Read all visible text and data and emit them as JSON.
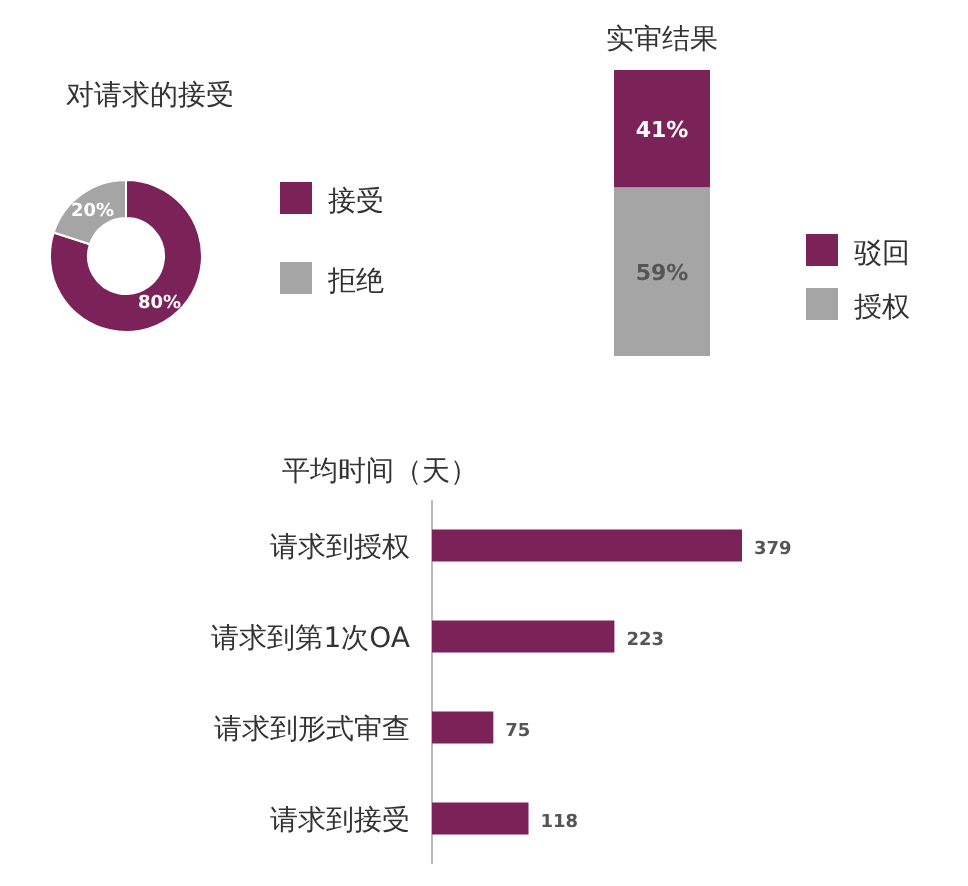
{
  "chart_data": [
    {
      "type": "donut",
      "title": "对请求的接受",
      "categories": [
        "接受",
        "拒绝"
      ],
      "values": [
        80,
        20
      ],
      "colors": [
        "#7b2359",
        "#a5a5a5"
      ],
      "value_labels": [
        "80%",
        "20%"
      ],
      "legend": "right"
    },
    {
      "type": "bar",
      "title": "实审结果",
      "categories": [
        null
      ],
      "stacked": true,
      "legend": "right",
      "series": [
        {
          "name": "授权",
          "color": "#a5a5a5",
          "values": [
            59
          ],
          "value_labels": [
            "59%"
          ]
        },
        {
          "name": "驳回",
          "color": "#7b2359",
          "values": [
            41
          ],
          "value_labels": [
            "41%"
          ]
        }
      ]
    },
    {
      "type": "bar",
      "title": "平均时间（天）",
      "orientation": "horizontal",
      "categories": [
        "请求到授权",
        "请求到第1次OA",
        "请求到形式审查",
        "请求到接受"
      ],
      "values": [
        379,
        223,
        75,
        118
      ],
      "color": "#7b2359",
      "data_labels": true
    }
  ]
}
